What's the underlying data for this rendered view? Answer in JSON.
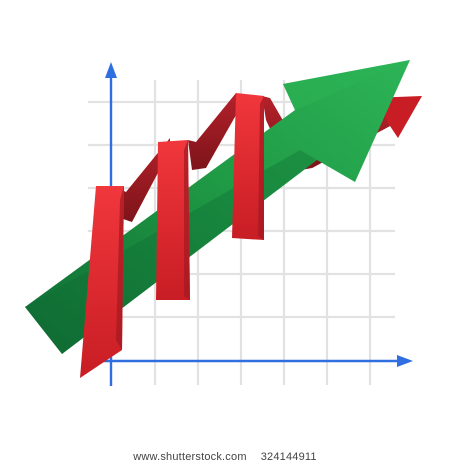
{
  "artwork": {
    "icon": "growth-chart-icon",
    "colors": {
      "background": "#ffffff",
      "grid": "#e2e2e2",
      "axis": "#2f6fe0",
      "green_arrow": "#1f9a45",
      "green_arrow_dark": "#0f6b33",
      "red_ribbon": "#e3262d",
      "red_ribbon_dark": "#9a1a20"
    }
  },
  "watermark": {
    "site": "www.shutterstock.com",
    "image_number": "324144911"
  }
}
